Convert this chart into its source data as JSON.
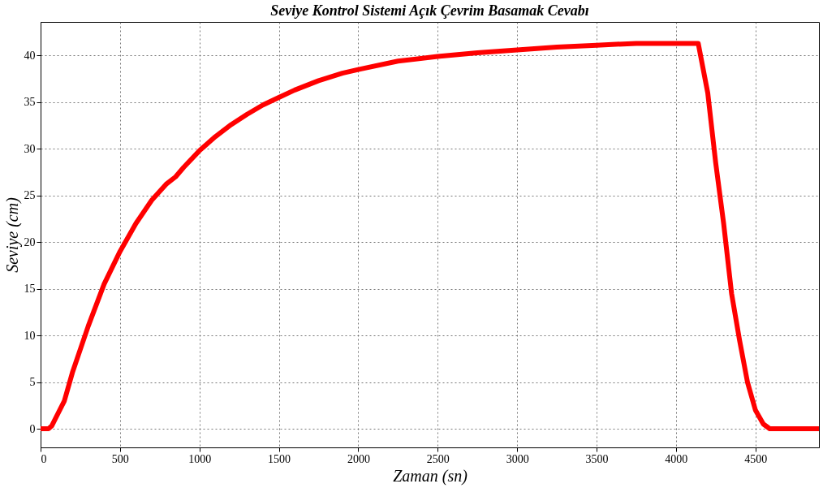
{
  "chart_data": {
    "type": "line",
    "title": "Seviye Kontrol Sistemi Açık Çevrim Basamak Cevabı",
    "xlabel": "Zaman (sn)",
    "ylabel": "Seviye (cm)",
    "x": [
      0,
      50,
      70,
      150,
      200,
      300,
      400,
      500,
      600,
      700,
      790,
      850,
      900,
      1000,
      1100,
      1200,
      1300,
      1400,
      1500,
      1600,
      1750,
      1900,
      2000,
      2250,
      2500,
      2750,
      3000,
      3250,
      3500,
      3750,
      4000,
      4140,
      4200,
      4250,
      4300,
      4350,
      4400,
      4450,
      4500,
      4550,
      4590,
      4700,
      4900
    ],
    "series": [
      {
        "color": "#ff0000",
        "values": [
          0,
          0,
          0.3,
          3,
          6,
          11,
          15.5,
          19,
          22,
          24.5,
          26.2,
          27,
          28,
          29.8,
          31.3,
          32.6,
          33.7,
          34.7,
          35.5,
          36.3,
          37.3,
          38.1,
          38.5,
          39.4,
          39.9,
          40.3,
          40.6,
          40.9,
          41.1,
          41.3,
          41.3,
          41.3,
          36,
          28.5,
          22,
          14.5,
          9.5,
          5,
          2,
          0.5,
          0,
          0,
          0
        ]
      }
    ],
    "xlim": [
      0,
      4900
    ],
    "xticks": [
      0,
      500,
      1000,
      1500,
      2000,
      2500,
      3000,
      3500,
      4000,
      4500
    ],
    "ylim": [
      -2,
      43.6
    ],
    "yticks": [
      0,
      5,
      10,
      15,
      20,
      25,
      30,
      35,
      40
    ],
    "grid": true,
    "legend": false,
    "marker": "none",
    "line_style": "solid"
  }
}
